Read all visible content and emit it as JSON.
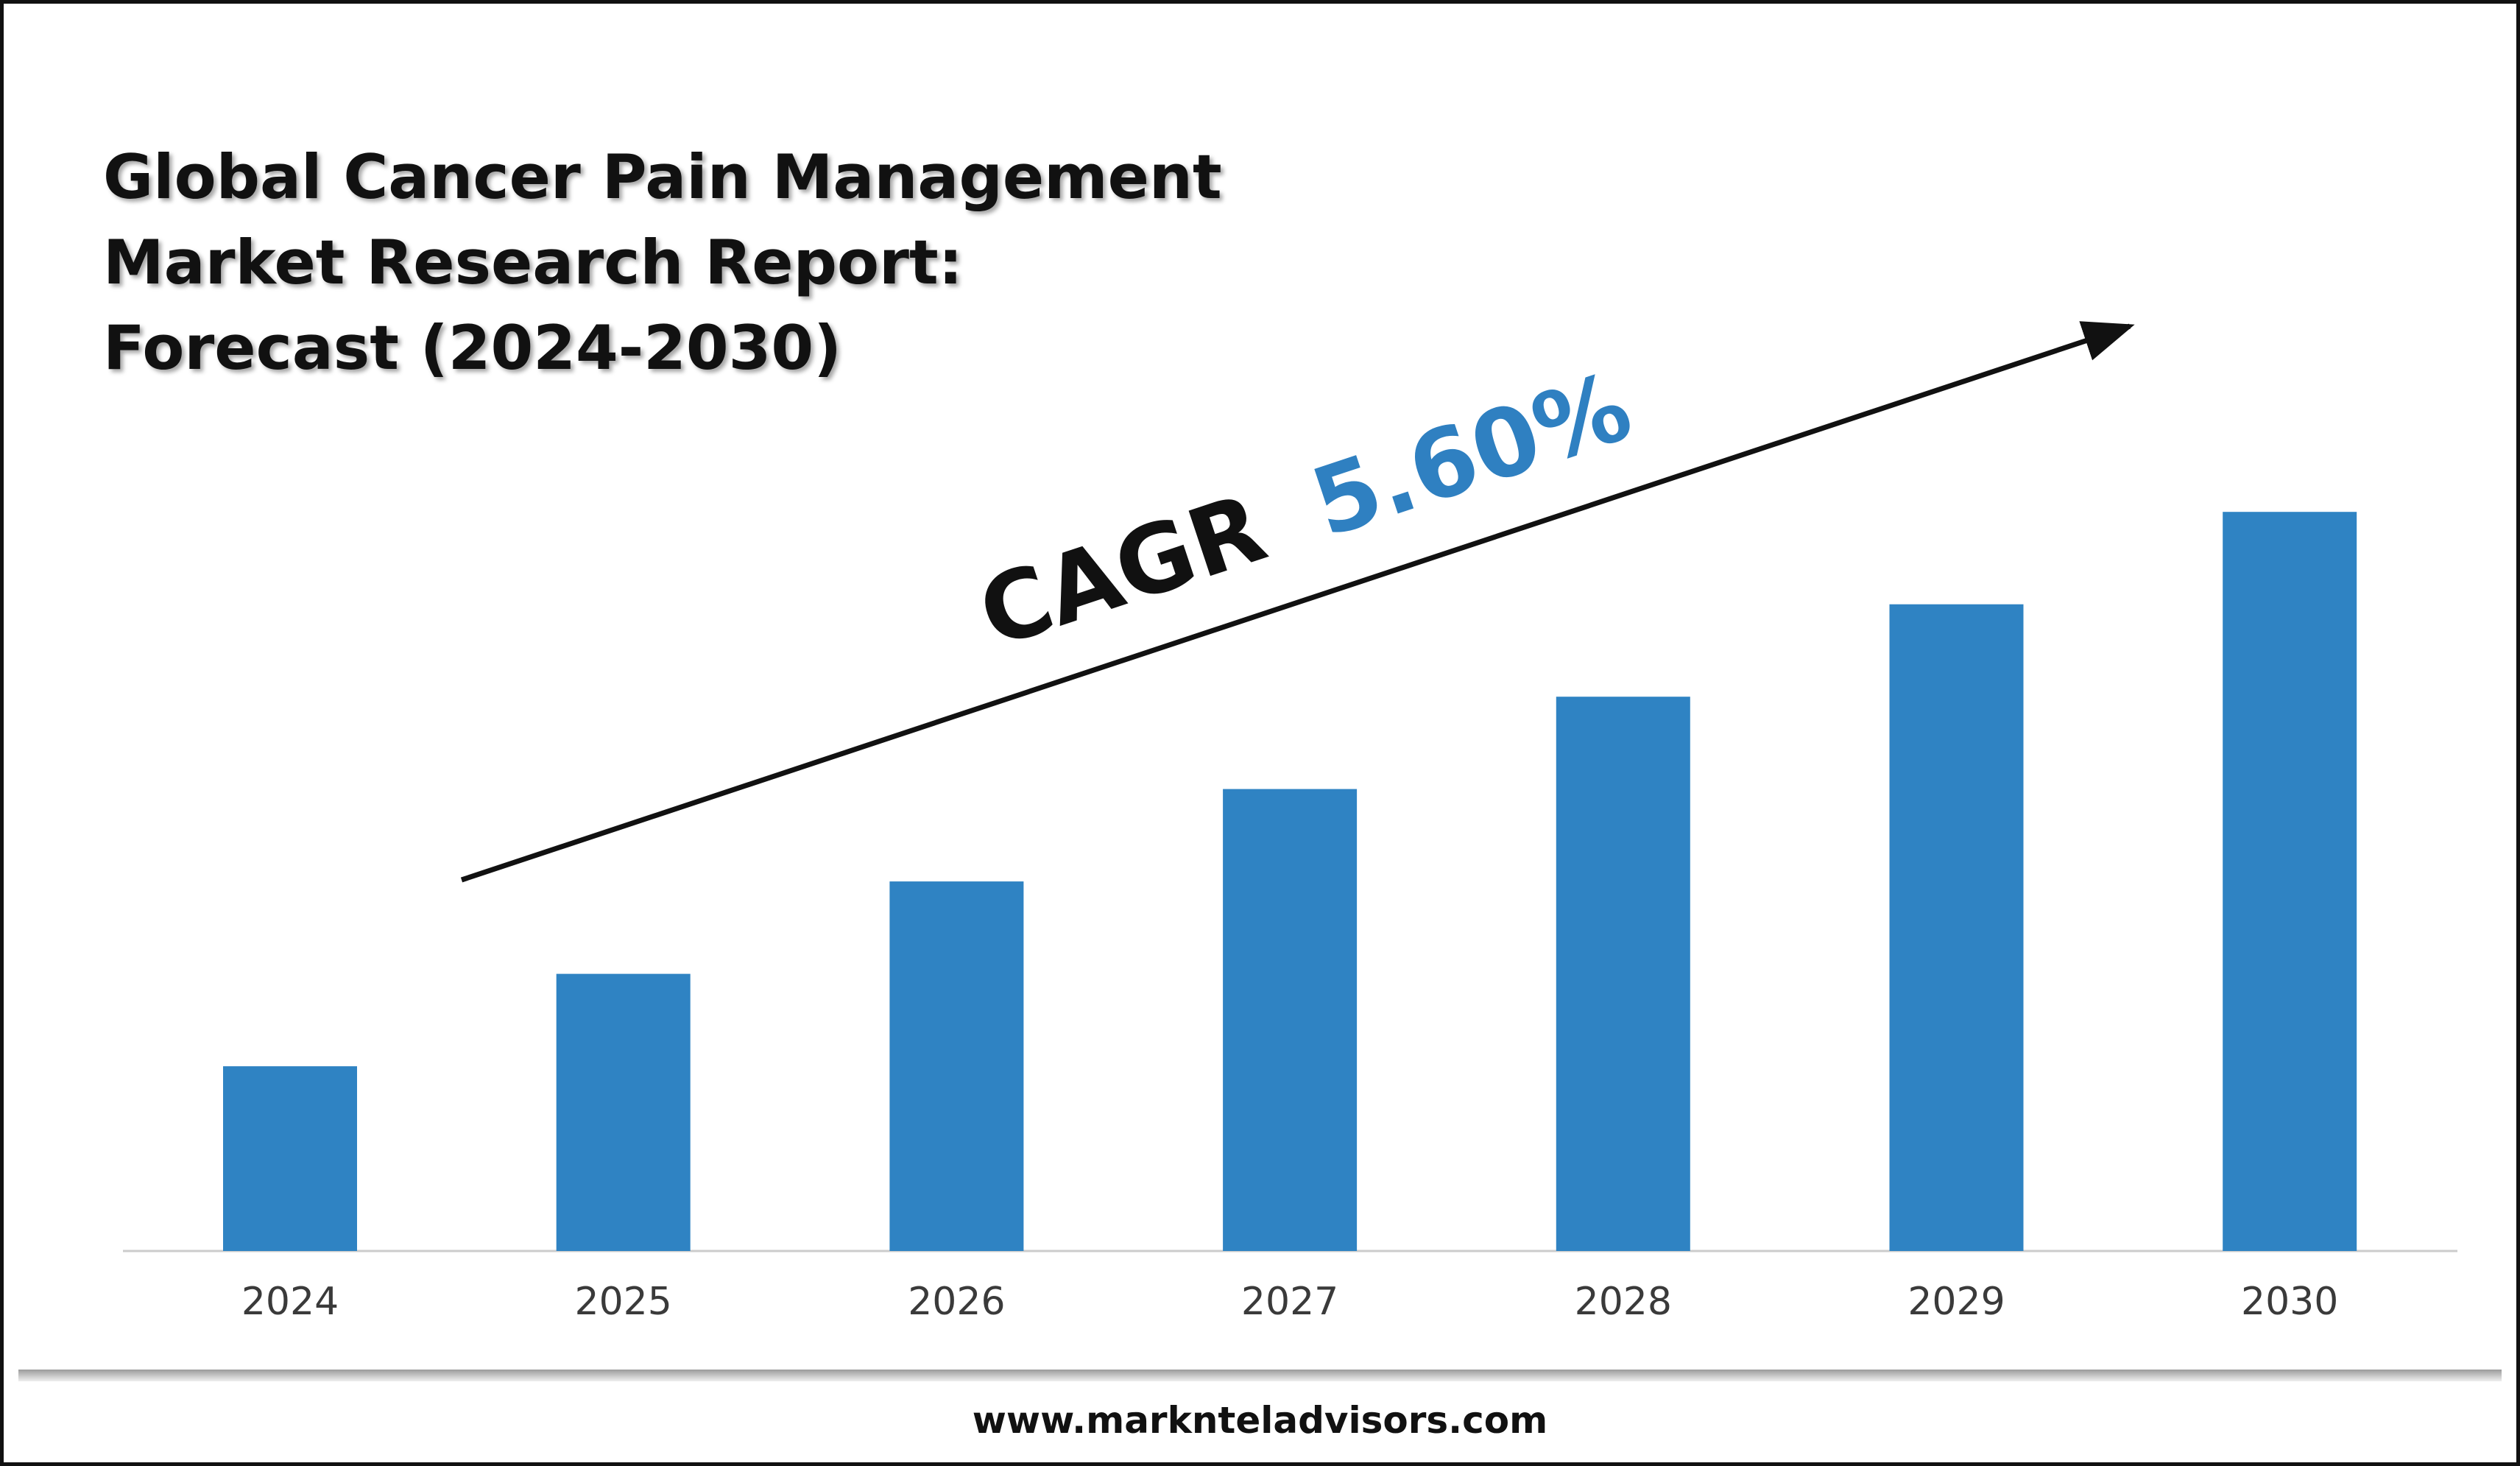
{
  "title_lines": [
    "Global Cancer Pain Management",
    "Market Research Report:",
    "Forecast (2024-2030)"
  ],
  "cagr": {
    "label": "CAGR",
    "value": "5.60%",
    "value_color": "#2f80c1",
    "label_color": "#111111"
  },
  "footer": {
    "website": "www.marknteladvisors.com"
  },
  "colors": {
    "bar": "#2f83c3",
    "axis": "#cccccc",
    "arrow": "#111111"
  },
  "chart_data": {
    "type": "bar",
    "categories": [
      "2024",
      "2025",
      "2026",
      "2027",
      "2028",
      "2029",
      "2030"
    ],
    "values": [
      1.0,
      1.5,
      2.0,
      2.5,
      3.0,
      3.5,
      4.0
    ],
    "ylim": [
      0,
      5.3
    ],
    "title": "Global Cancer Pain Management Market Research Report: Forecast (2024-2030)",
    "xlabel": "",
    "ylabel": "",
    "grid": false,
    "legend": "none"
  }
}
